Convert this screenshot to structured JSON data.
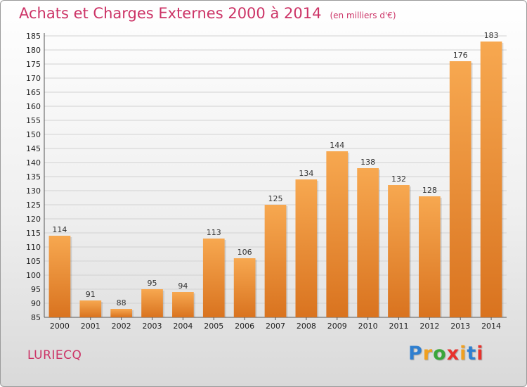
{
  "header": {
    "title": "Achats et Charges Externes 2000 à 2014",
    "subtitle": "(en milliers d'€)"
  },
  "footer": {
    "commune": "LURIECQ",
    "brand_letters": [
      "P",
      "r",
      "o",
      "x",
      "i",
      "t",
      "i"
    ],
    "brand_colors": [
      "#2f7fd0",
      "#f0a020",
      "#3aa63a",
      "#e8322c",
      "#f0a020",
      "#2f7fd0",
      "#e8322c"
    ]
  },
  "chart_data": {
    "type": "bar",
    "title": "Achats et Charges Externes 2000 à 2014",
    "subtitle": "(en milliers d'€)",
    "xlabel": "",
    "ylabel": "",
    "categories": [
      "2000",
      "2001",
      "2002",
      "2003",
      "2004",
      "2005",
      "2006",
      "2007",
      "2008",
      "2009",
      "2010",
      "2011",
      "2012",
      "2013",
      "2014"
    ],
    "values": [
      114,
      91,
      88,
      95,
      94,
      113,
      106,
      125,
      134,
      144,
      138,
      132,
      128,
      176,
      183
    ],
    "ylim": [
      85,
      185
    ],
    "ytick_step": 5,
    "grid": true,
    "bar_color_top": "#f7a850",
    "bar_color_bottom": "#d9731f"
  }
}
